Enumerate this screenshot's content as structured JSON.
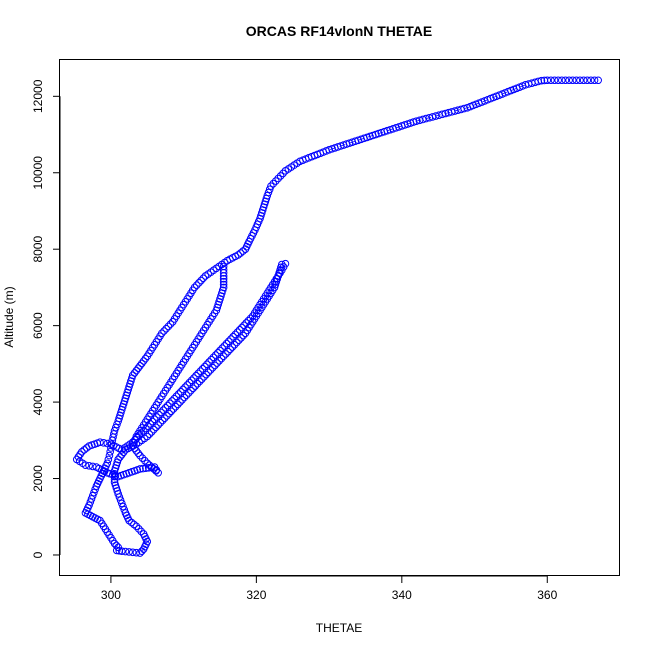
{
  "chart_data": {
    "type": "scatter",
    "title": "ORCAS RF14vlonN THETAE",
    "xlabel": "THETAE",
    "ylabel": "Altitude (m)",
    "xlim": [
      293,
      370
    ],
    "ylim": [
      -550,
      12950
    ],
    "xticks": [
      300,
      320,
      340,
      360
    ],
    "yticks": [
      0,
      2000,
      4000,
      6000,
      8000,
      10000,
      12000
    ],
    "marker": "open-circle",
    "color": "#0000ff",
    "connected_segment": true,
    "series": [
      {
        "values": [
          [
            367.0,
            12420
          ],
          [
            366.0,
            12420
          ],
          [
            365.0,
            12420
          ],
          [
            364.0,
            12420
          ],
          [
            363.0,
            12420
          ],
          [
            362.0,
            12420
          ],
          [
            361.0,
            12420
          ],
          [
            360.0,
            12420
          ],
          [
            359.2,
            12410
          ],
          [
            357.0,
            12300
          ],
          [
            355.0,
            12150
          ],
          [
            353.0,
            12000
          ],
          [
            351.0,
            11850
          ],
          [
            349.0,
            11700
          ],
          [
            346.0,
            11550
          ],
          [
            342.0,
            11350
          ],
          [
            338.0,
            11100
          ],
          [
            334.0,
            10850
          ],
          [
            330.0,
            10600
          ],
          [
            326.0,
            10300
          ],
          [
            324.0,
            10050
          ],
          [
            323.0,
            9850
          ],
          [
            322.0,
            9650
          ],
          [
            321.5,
            9400
          ],
          [
            321.0,
            9100
          ],
          [
            320.5,
            8800
          ],
          [
            319.8,
            8500
          ],
          [
            319.0,
            8200
          ],
          [
            318.5,
            8000
          ],
          [
            317.5,
            7850
          ],
          [
            316.0,
            7700
          ],
          [
            314.5,
            7500
          ],
          [
            313.0,
            7300
          ],
          [
            311.5,
            7000
          ],
          [
            310.5,
            6700
          ],
          [
            309.5,
            6400
          ],
          [
            308.5,
            6100
          ],
          [
            307.0,
            5800
          ],
          [
            306.0,
            5500
          ],
          [
            305.0,
            5200
          ],
          [
            304.0,
            4950
          ],
          [
            303.0,
            4700
          ],
          [
            302.5,
            4400
          ],
          [
            302.0,
            4100
          ],
          [
            301.5,
            3800
          ],
          [
            301.0,
            3500
          ],
          [
            300.5,
            3250
          ],
          [
            300.2,
            3000
          ],
          [
            300.0,
            2800
          ],
          [
            299.8,
            2600
          ],
          [
            299.5,
            2400
          ],
          [
            299.0,
            2200
          ],
          [
            298.5,
            2000
          ],
          [
            298.0,
            1800
          ],
          [
            297.5,
            1550
          ],
          [
            297.0,
            1300
          ],
          [
            296.5,
            1100
          ],
          [
            297.5,
            1000
          ],
          [
            298.5,
            900
          ],
          [
            299.0,
            750
          ],
          [
            299.5,
            600
          ],
          [
            300.0,
            450
          ],
          [
            300.5,
            300
          ],
          [
            301.0,
            200
          ],
          [
            300.8,
            120
          ],
          [
            301.5,
            100
          ],
          [
            302.5,
            80
          ],
          [
            303.5,
            60
          ],
          [
            304.0,
            50
          ],
          [
            304.5,
            150
          ],
          [
            305.0,
            350
          ],
          [
            304.5,
            550
          ],
          [
            303.5,
            750
          ],
          [
            302.5,
            900
          ],
          [
            302.0,
            1100
          ],
          [
            301.5,
            1350
          ],
          [
            301.0,
            1600
          ],
          [
            300.5,
            1900
          ],
          [
            300.5,
            2200
          ],
          [
            301.0,
            2500
          ],
          [
            302.0,
            2750
          ],
          [
            303.5,
            2900
          ],
          [
            305.0,
            3100
          ],
          [
            306.5,
            3400
          ],
          [
            308.0,
            3700
          ],
          [
            309.5,
            4000
          ],
          [
            311.0,
            4300
          ],
          [
            312.5,
            4600
          ],
          [
            314.0,
            4900
          ],
          [
            315.5,
            5200
          ],
          [
            317.0,
            5500
          ],
          [
            318.5,
            5800
          ],
          [
            319.5,
            6100
          ],
          [
            320.5,
            6400
          ],
          [
            321.5,
            6700
          ],
          [
            322.5,
            7000
          ],
          [
            323.0,
            7300
          ],
          [
            323.5,
            7600
          ],
          [
            324.0,
            7620
          ],
          [
            323.5,
            7450
          ],
          [
            322.5,
            7150
          ],
          [
            321.5,
            6850
          ],
          [
            320.5,
            6550
          ],
          [
            319.5,
            6250
          ],
          [
            318.0,
            5950
          ],
          [
            316.5,
            5650
          ],
          [
            315.0,
            5350
          ],
          [
            313.5,
            5050
          ],
          [
            312.0,
            4750
          ],
          [
            310.5,
            4450
          ],
          [
            309.0,
            4150
          ],
          [
            307.5,
            3850
          ],
          [
            306.0,
            3550
          ],
          [
            304.5,
            3250
          ],
          [
            303.0,
            2950
          ],
          [
            301.5,
            2750
          ],
          [
            300.0,
            2900
          ],
          [
            298.5,
            2950
          ],
          [
            297.0,
            2850
          ],
          [
            296.0,
            2700
          ],
          [
            295.3,
            2500
          ],
          [
            296.5,
            2350
          ],
          [
            298.0,
            2300
          ],
          [
            299.5,
            2150
          ],
          [
            301.0,
            2050
          ],
          [
            302.5,
            2150
          ],
          [
            304.0,
            2250
          ],
          [
            306.0,
            2300
          ],
          [
            306.5,
            2150
          ],
          [
            305.0,
            2400
          ],
          [
            304.0,
            2600
          ],
          [
            303.0,
            2850
          ],
          [
            303.5,
            3100
          ],
          [
            304.5,
            3400
          ],
          [
            305.5,
            3700
          ],
          [
            306.5,
            4000
          ],
          [
            307.5,
            4300
          ],
          [
            308.5,
            4600
          ],
          [
            309.5,
            4900
          ],
          [
            310.5,
            5200
          ],
          [
            311.5,
            5500
          ],
          [
            312.5,
            5800
          ],
          [
            313.5,
            6100
          ],
          [
            314.5,
            6400
          ],
          [
            315.0,
            6700
          ],
          [
            315.5,
            7000
          ],
          [
            315.5,
            7300
          ],
          [
            315.5,
            7550
          ]
        ]
      }
    ]
  }
}
